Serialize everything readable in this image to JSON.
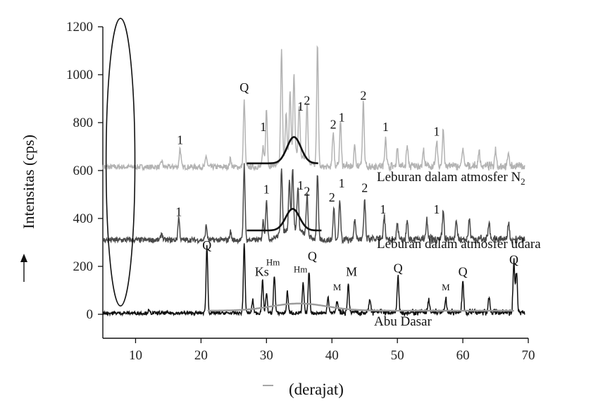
{
  "chart_data": {
    "type": "line",
    "xlabel": "(derajat)",
    "ylabel": "Intensitas (cps)",
    "xlim": [
      5,
      70
    ],
    "ylim": [
      -100,
      1200
    ],
    "x_ticks": [
      10,
      20,
      30,
      40,
      50,
      60,
      70
    ],
    "y_ticks": [
      0,
      200,
      400,
      600,
      800,
      1000,
      1200
    ],
    "grid": false,
    "series": [
      {
        "name": "Leburan dalam atmosfer N",
        "name_subscript": "2",
        "color": "#b3b3b3",
        "baseline": 615,
        "peaks": [
          {
            "x": 14.0,
            "y": 640
          },
          {
            "x": 16.8,
            "y": 695
          },
          {
            "x": 20.8,
            "y": 660
          },
          {
            "x": 24.5,
            "y": 650
          },
          {
            "x": 26.6,
            "y": 890
          },
          {
            "x": 29.5,
            "y": 700
          },
          {
            "x": 30.0,
            "y": 860
          },
          {
            "x": 32.3,
            "y": 1070
          },
          {
            "x": 33.0,
            "y": 790
          },
          {
            "x": 33.6,
            "y": 870
          },
          {
            "x": 34.2,
            "y": 940
          },
          {
            "x": 35.0,
            "y": 820
          },
          {
            "x": 36.2,
            "y": 860
          },
          {
            "x": 37.8,
            "y": 1125
          },
          {
            "x": 40.2,
            "y": 760
          },
          {
            "x": 41.3,
            "y": 810
          },
          {
            "x": 43.5,
            "y": 700
          },
          {
            "x": 44.8,
            "y": 880
          },
          {
            "x": 48.2,
            "y": 740
          },
          {
            "x": 50.0,
            "y": 690
          },
          {
            "x": 51.5,
            "y": 700
          },
          {
            "x": 54.0,
            "y": 680
          },
          {
            "x": 56.0,
            "y": 720
          },
          {
            "x": 57.0,
            "y": 770
          },
          {
            "x": 60.0,
            "y": 690
          },
          {
            "x": 62.5,
            "y": 680
          },
          {
            "x": 65.0,
            "y": 690
          },
          {
            "x": 67.0,
            "y": 670
          }
        ],
        "amorphous_hump": {
          "start": 27,
          "end": 38,
          "baseline": 630,
          "peak_x": 34.2,
          "peak_y": 740
        }
      },
      {
        "name": "Leburan dalam atmosfer udara",
        "color": "#4a4a4a",
        "baseline": 310,
        "peaks": [
          {
            "x": 14.0,
            "y": 340
          },
          {
            "x": 16.6,
            "y": 405
          },
          {
            "x": 20.8,
            "y": 370
          },
          {
            "x": 24.5,
            "y": 345
          },
          {
            "x": 26.6,
            "y": 625
          },
          {
            "x": 29.5,
            "y": 390
          },
          {
            "x": 30.0,
            "y": 480
          },
          {
            "x": 32.3,
            "y": 590
          },
          {
            "x": 33.5,
            "y": 520
          },
          {
            "x": 34.0,
            "y": 560
          },
          {
            "x": 34.8,
            "y": 490
          },
          {
            "x": 36.2,
            "y": 480
          },
          {
            "x": 37.8,
            "y": 580
          },
          {
            "x": 40.3,
            "y": 440
          },
          {
            "x": 41.2,
            "y": 475
          },
          {
            "x": 43.5,
            "y": 400
          },
          {
            "x": 45.0,
            "y": 470
          },
          {
            "x": 48.0,
            "y": 400
          },
          {
            "x": 50.0,
            "y": 380
          },
          {
            "x": 51.5,
            "y": 395
          },
          {
            "x": 54.5,
            "y": 390
          },
          {
            "x": 57.0,
            "y": 430
          },
          {
            "x": 59.0,
            "y": 390
          },
          {
            "x": 61.0,
            "y": 400
          },
          {
            "x": 64.0,
            "y": 390
          },
          {
            "x": 67.0,
            "y": 380
          }
        ],
        "amorphous_hump": {
          "start": 27,
          "end": 38.5,
          "baseline": 350,
          "peak_x": 34.0,
          "peak_y": 440
        }
      },
      {
        "name": "Abu Dasar",
        "color": "#111111",
        "baseline": 5,
        "peaks": [
          {
            "x": 12.0,
            "y": 15
          },
          {
            "x": 20.9,
            "y": 285
          },
          {
            "x": 26.6,
            "y": 295
          },
          {
            "x": 27.9,
            "y": 60
          },
          {
            "x": 29.4,
            "y": 140
          },
          {
            "x": 30.0,
            "y": 90
          },
          {
            "x": 31.2,
            "y": 165
          },
          {
            "x": 33.2,
            "y": 95
          },
          {
            "x": 35.6,
            "y": 130
          },
          {
            "x": 36.5,
            "y": 180
          },
          {
            "x": 39.4,
            "y": 75
          },
          {
            "x": 40.8,
            "y": 55
          },
          {
            "x": 42.5,
            "y": 120
          },
          {
            "x": 45.8,
            "y": 60
          },
          {
            "x": 50.1,
            "y": 160
          },
          {
            "x": 54.8,
            "y": 55
          },
          {
            "x": 57.4,
            "y": 60
          },
          {
            "x": 60.0,
            "y": 130
          },
          {
            "x": 64.0,
            "y": 70
          },
          {
            "x": 67.8,
            "y": 220
          },
          {
            "x": 68.2,
            "y": 180
          }
        ],
        "background_curve": {
          "start": 21,
          "end": 68,
          "baseline": 15,
          "peak_x": 35,
          "peak_y": 45
        }
      }
    ],
    "peak_labels": [
      {
        "text": "Q",
        "x": 26.6,
        "y": 930
      },
      {
        "text": "1",
        "x": 16.8,
        "y": 710
      },
      {
        "text": "1",
        "x": 29.5,
        "y": 765
      },
      {
        "text": "1",
        "x": 35.2,
        "y": 850
      },
      {
        "text": "2",
        "x": 36.2,
        "y": 875
      },
      {
        "text": "2",
        "x": 40.2,
        "y": 775
      },
      {
        "text": "1",
        "x": 41.5,
        "y": 805
      },
      {
        "text": "2",
        "x": 44.8,
        "y": 895
      },
      {
        "text": "1",
        "x": 48.2,
        "y": 765
      },
      {
        "text": "1",
        "x": 56.0,
        "y": 745
      },
      {
        "text": "1",
        "x": 16.6,
        "y": 410
      },
      {
        "text": "1",
        "x": 30.0,
        "y": 505
      },
      {
        "text": "1",
        "x": 35.2,
        "y": 520
      },
      {
        "text": "2",
        "x": 36.2,
        "y": 495
      },
      {
        "text": "2",
        "x": 40.0,
        "y": 470
      },
      {
        "text": "1",
        "x": 41.5,
        "y": 530
      },
      {
        "text": "2",
        "x": 45.0,
        "y": 510
      },
      {
        "text": "1",
        "x": 47.8,
        "y": 420
      },
      {
        "text": "1",
        "x": 56.0,
        "y": 420
      },
      {
        "text": "Q",
        "x": 20.9,
        "y": 270
      },
      {
        "text": "Ks",
        "x": 29.3,
        "y": 160
      },
      {
        "text": "Hm",
        "x": 31.0,
        "y": 205,
        "small": true
      },
      {
        "text": "Hm",
        "x": 35.2,
        "y": 175,
        "small": true
      },
      {
        "text": "Q",
        "x": 37.0,
        "y": 225
      },
      {
        "text": "M",
        "x": 40.8,
        "y": 100,
        "small": true
      },
      {
        "text": "M",
        "x": 43.0,
        "y": 160
      },
      {
        "text": "Q",
        "x": 50.1,
        "y": 175
      },
      {
        "text": "M",
        "x": 57.4,
        "y": 100,
        "small": true
      },
      {
        "text": "Q",
        "x": 60.0,
        "y": 160
      },
      {
        "text": "Q",
        "x": 67.8,
        "y": 210
      }
    ],
    "highlight_ellipse": {
      "cx": 7.7,
      "cy": 635,
      "rx": 2.2,
      "ry": 600
    }
  }
}
